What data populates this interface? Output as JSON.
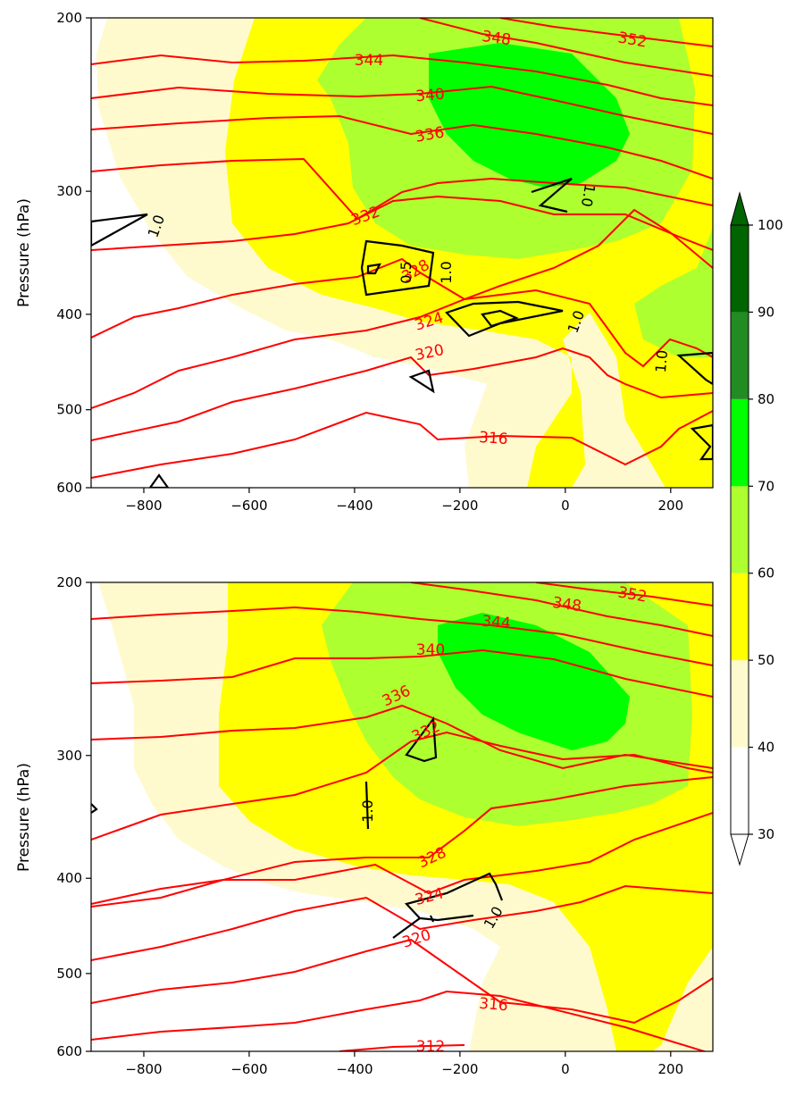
{
  "chart_data": [
    {
      "type": "contour",
      "panel": "top",
      "ylabel": "Pressure (hPa)",
      "xlabel": "",
      "xlim": [
        -900,
        280
      ],
      "ylim": [
        600,
        200
      ],
      "y_scale": "log",
      "x_ticks": [
        -800,
        -600,
        -400,
        -200,
        0,
        200
      ],
      "x_tick_labels": [
        "−800",
        "−600",
        "−400",
        "−200",
        "0",
        "200"
      ],
      "y_ticks": [
        200,
        300,
        400,
        500,
        600
      ],
      "y_tick_labels": [
        "200",
        "300",
        "400",
        "500",
        "600"
      ],
      "isentrope_labels": [
        "352",
        "348",
        "344",
        "340",
        "336",
        "332",
        "328",
        "324",
        "320",
        "316"
      ],
      "black_contour_labels": [
        "1.0",
        "0.5",
        "1.0",
        "1.0",
        "1.0",
        "1.0"
      ]
    },
    {
      "type": "contour",
      "panel": "bottom",
      "ylabel": "Pressure (hPa)",
      "xlabel": "",
      "xlim": [
        -900,
        280
      ],
      "ylim": [
        600,
        200
      ],
      "y_scale": "log",
      "x_ticks": [
        -800,
        -600,
        -400,
        -200,
        0,
        200
      ],
      "x_tick_labels": [
        "−800",
        "−600",
        "−400",
        "−200",
        "0",
        "200"
      ],
      "y_ticks": [
        200,
        300,
        400,
        500,
        600
      ],
      "y_tick_labels": [
        "200",
        "300",
        "400",
        "500",
        "600"
      ],
      "isentrope_labels": [
        "352",
        "348",
        "344",
        "340",
        "336",
        "332",
        "328",
        "324",
        "320",
        "316",
        "312"
      ],
      "black_contour_labels": [
        "1.0",
        "1.0"
      ]
    }
  ],
  "colorbar": {
    "ticks": [
      "30",
      "40",
      "50",
      "60",
      "70",
      "80",
      "90",
      "100"
    ],
    "levels": [
      30,
      40,
      50,
      60,
      70,
      80,
      90,
      100
    ],
    "colors": [
      "#ffffff",
      "#fffacd",
      "#ffff00",
      "#adff2f",
      "#00ff00",
      "#228b22",
      "#006400"
    ],
    "extend": "both",
    "under_color": "#ffffff",
    "over_color": "#006400"
  },
  "colors": {
    "isentrope": "#ff0000",
    "black_contour": "#000000",
    "band_40_50": "#fffacd",
    "band_50_60": "#ffff00",
    "band_60_70": "#adff2f",
    "band_70_80": "#00ff00"
  }
}
